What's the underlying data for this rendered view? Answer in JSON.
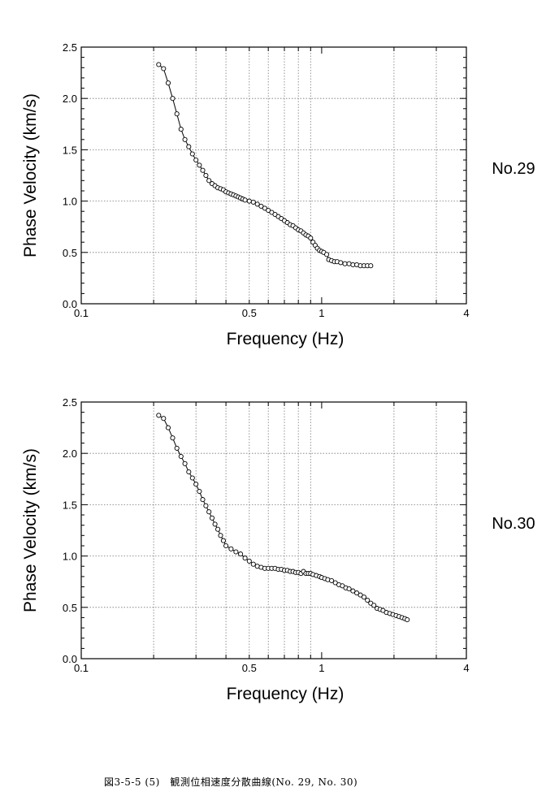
{
  "caption": "図3-5-5 (5)　観測位相速度分散曲線(No. 29, No. 30)",
  "chart_data": [
    {
      "type": "scatter",
      "station": "No.29",
      "xlabel": "Frequency (Hz)",
      "ylabel": "Phase Velocity (km/s)",
      "xscale": "log",
      "xlim": [
        0.1,
        4
      ],
      "ylim": [
        0.0,
        2.5
      ],
      "xticks": [
        0.1,
        0.5,
        1,
        4
      ],
      "xtick_labels": [
        "0.1",
        "0.5",
        "1",
        "4"
      ],
      "yticks": [
        0.0,
        0.5,
        1.0,
        1.5,
        2.0,
        2.5
      ],
      "ytick_labels": [
        "0.0",
        "0.5",
        "1.0",
        "1.5",
        "2.0",
        "2.5"
      ],
      "grid": true,
      "series": [
        {
          "values": [
            [
              0.21,
              2.33
            ],
            [
              0.22,
              2.29
            ],
            [
              0.23,
              2.15
            ],
            [
              0.24,
              2.0
            ],
            [
              0.25,
              1.85
            ],
            [
              0.26,
              1.7
            ],
            [
              0.27,
              1.6
            ],
            [
              0.28,
              1.53
            ],
            [
              0.29,
              1.46
            ],
            [
              0.3,
              1.4
            ],
            [
              0.31,
              1.35
            ],
            [
              0.32,
              1.3
            ],
            [
              0.33,
              1.25
            ],
            [
              0.34,
              1.2
            ],
            [
              0.35,
              1.17
            ],
            [
              0.36,
              1.15
            ],
            [
              0.37,
              1.13
            ],
            [
              0.38,
              1.12
            ],
            [
              0.39,
              1.11
            ],
            [
              0.4,
              1.09
            ],
            [
              0.41,
              1.08
            ],
            [
              0.42,
              1.07
            ],
            [
              0.43,
              1.06
            ],
            [
              0.44,
              1.05
            ],
            [
              0.45,
              1.04
            ],
            [
              0.46,
              1.03
            ],
            [
              0.47,
              1.02
            ],
            [
              0.48,
              1.01
            ],
            [
              0.5,
              1.0
            ],
            [
              0.52,
              0.99
            ],
            [
              0.54,
              0.97
            ],
            [
              0.56,
              0.95
            ],
            [
              0.58,
              0.93
            ],
            [
              0.6,
              0.91
            ],
            [
              0.62,
              0.89
            ],
            [
              0.64,
              0.87
            ],
            [
              0.66,
              0.85
            ],
            [
              0.68,
              0.83
            ],
            [
              0.7,
              0.81
            ],
            [
              0.72,
              0.79
            ],
            [
              0.74,
              0.77
            ],
            [
              0.76,
              0.76
            ],
            [
              0.78,
              0.74
            ],
            [
              0.8,
              0.72
            ],
            [
              0.82,
              0.71
            ],
            [
              0.84,
              0.69
            ],
            [
              0.86,
              0.67
            ],
            [
              0.88,
              0.66
            ],
            [
              0.9,
              0.64
            ],
            [
              0.92,
              0.6
            ],
            [
              0.94,
              0.57
            ],
            [
              0.96,
              0.54
            ],
            [
              0.98,
              0.52
            ],
            [
              1.0,
              0.51
            ],
            [
              1.02,
              0.5
            ],
            [
              1.05,
              0.48
            ],
            [
              1.07,
              0.43
            ],
            [
              1.1,
              0.42
            ],
            [
              1.13,
              0.41
            ],
            [
              1.16,
              0.41
            ],
            [
              1.2,
              0.4
            ],
            [
              1.25,
              0.39
            ],
            [
              1.3,
              0.39
            ],
            [
              1.35,
              0.38
            ],
            [
              1.4,
              0.38
            ],
            [
              1.45,
              0.37
            ],
            [
              1.5,
              0.37
            ],
            [
              1.55,
              0.37
            ],
            [
              1.6,
              0.37
            ]
          ]
        }
      ]
    },
    {
      "type": "scatter",
      "station": "No.30",
      "xlabel": "Frequency (Hz)",
      "ylabel": "Phase Velocity (km/s)",
      "xscale": "log",
      "xlim": [
        0.1,
        4
      ],
      "ylim": [
        0.0,
        2.5
      ],
      "xticks": [
        0.1,
        0.5,
        1,
        4
      ],
      "xtick_labels": [
        "0.1",
        "0.5",
        "1",
        "4"
      ],
      "yticks": [
        0.0,
        0.5,
        1.0,
        1.5,
        2.0,
        2.5
      ],
      "ytick_labels": [
        "0.0",
        "0.5",
        "1.0",
        "1.5",
        "2.0",
        "2.5"
      ],
      "grid": true,
      "series": [
        {
          "values": [
            [
              0.21,
              2.37
            ],
            [
              0.22,
              2.34
            ],
            [
              0.23,
              2.25
            ],
            [
              0.24,
              2.15
            ],
            [
              0.25,
              2.05
            ],
            [
              0.26,
              1.97
            ],
            [
              0.27,
              1.9
            ],
            [
              0.28,
              1.82
            ],
            [
              0.29,
              1.76
            ],
            [
              0.3,
              1.7
            ],
            [
              0.31,
              1.63
            ],
            [
              0.32,
              1.55
            ],
            [
              0.33,
              1.49
            ],
            [
              0.34,
              1.43
            ],
            [
              0.35,
              1.37
            ],
            [
              0.36,
              1.31
            ],
            [
              0.37,
              1.26
            ],
            [
              0.38,
              1.2
            ],
            [
              0.39,
              1.15
            ],
            [
              0.4,
              1.1
            ],
            [
              0.42,
              1.07
            ],
            [
              0.44,
              1.04
            ],
            [
              0.46,
              1.02
            ],
            [
              0.48,
              0.98
            ],
            [
              0.5,
              0.95
            ],
            [
              0.52,
              0.92
            ],
            [
              0.54,
              0.9
            ],
            [
              0.56,
              0.89
            ],
            [
              0.58,
              0.88
            ],
            [
              0.6,
              0.88
            ],
            [
              0.62,
              0.88
            ],
            [
              0.64,
              0.88
            ],
            [
              0.66,
              0.87
            ],
            [
              0.68,
              0.87
            ],
            [
              0.7,
              0.86
            ],
            [
              0.72,
              0.86
            ],
            [
              0.74,
              0.85
            ],
            [
              0.76,
              0.85
            ],
            [
              0.78,
              0.84
            ],
            [
              0.8,
              0.84
            ],
            [
              0.82,
              0.83
            ],
            [
              0.84,
              0.85
            ],
            [
              0.86,
              0.83
            ],
            [
              0.88,
              0.83
            ],
            [
              0.9,
              0.83
            ],
            [
              0.92,
              0.82
            ],
            [
              0.95,
              0.81
            ],
            [
              0.98,
              0.8
            ],
            [
              1.0,
              0.79
            ],
            [
              1.03,
              0.78
            ],
            [
              1.06,
              0.77
            ],
            [
              1.1,
              0.76
            ],
            [
              1.14,
              0.74
            ],
            [
              1.18,
              0.72
            ],
            [
              1.22,
              0.71
            ],
            [
              1.26,
              0.69
            ],
            [
              1.3,
              0.68
            ],
            [
              1.35,
              0.66
            ],
            [
              1.4,
              0.64
            ],
            [
              1.45,
              0.62
            ],
            [
              1.5,
              0.6
            ],
            [
              1.55,
              0.57
            ],
            [
              1.6,
              0.54
            ],
            [
              1.65,
              0.52
            ],
            [
              1.7,
              0.49
            ],
            [
              1.75,
              0.48
            ],
            [
              1.8,
              0.47
            ],
            [
              1.86,
              0.45
            ],
            [
              1.92,
              0.44
            ],
            [
              1.98,
              0.43
            ],
            [
              2.04,
              0.42
            ],
            [
              2.1,
              0.41
            ],
            [
              2.16,
              0.4
            ],
            [
              2.22,
              0.39
            ],
            [
              2.27,
              0.38
            ]
          ]
        }
      ]
    }
  ]
}
